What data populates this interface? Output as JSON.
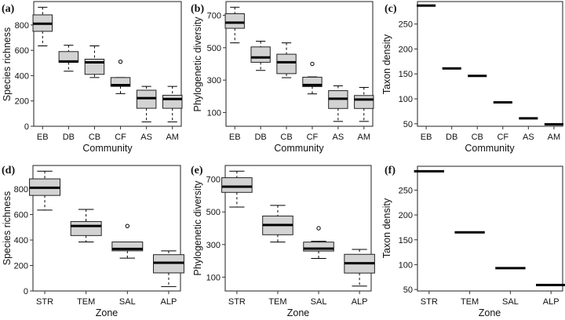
{
  "chart_data": [
    {
      "panel": "(a)",
      "type": "box",
      "xlabel": "Community",
      "ylabel": "Species richness",
      "ylim": [
        0,
        985
      ],
      "yticks": [
        0,
        200,
        400,
        600,
        800
      ],
      "categories": [
        "EB",
        "DB",
        "CB",
        "CF",
        "AS",
        "AM"
      ],
      "boxes": [
        {
          "min": 635,
          "q1": 750,
          "median": 810,
          "q3": 880,
          "max": 940,
          "outliers": []
        },
        {
          "min": 435,
          "q1": 505,
          "median": 512,
          "q3": 590,
          "max": 640,
          "outliers": []
        },
        {
          "min": 385,
          "q1": 410,
          "median": 505,
          "q3": 530,
          "max": 635,
          "outliers": []
        },
        {
          "min": 258,
          "q1": 315,
          "median": 325,
          "q3": 385,
          "max": 385,
          "outliers": [
            510
          ]
        },
        {
          "min": 35,
          "q1": 142,
          "median": 222,
          "q3": 285,
          "max": 315,
          "outliers": []
        },
        {
          "min": 35,
          "q1": 142,
          "median": 215,
          "q3": 245,
          "max": 315,
          "outliers": []
        }
      ]
    },
    {
      "panel": "(b)",
      "type": "box",
      "xlabel": "Community",
      "ylabel": "Phylogenetic diversity",
      "ylim": [
        15,
        785
      ],
      "yticks": [
        100,
        300,
        500,
        700
      ],
      "categories": [
        "EB",
        "DB",
        "CB",
        "CF",
        "AS",
        "AM"
      ],
      "boxes": [
        {
          "min": 530,
          "q1": 620,
          "median": 655,
          "q3": 710,
          "max": 750,
          "outliers": []
        },
        {
          "min": 360,
          "q1": 410,
          "median": 440,
          "q3": 505,
          "max": 540,
          "outliers": []
        },
        {
          "min": 315,
          "q1": 340,
          "median": 410,
          "q3": 460,
          "max": 530,
          "outliers": []
        },
        {
          "min": 215,
          "q1": 260,
          "median": 270,
          "q3": 318,
          "max": 320,
          "outliers": [
            400
          ]
        },
        {
          "min": 45,
          "q1": 125,
          "median": 185,
          "q3": 235,
          "max": 265,
          "outliers": []
        },
        {
          "min": 45,
          "q1": 125,
          "median": 180,
          "q3": 205,
          "max": 255,
          "outliers": []
        }
      ]
    },
    {
      "panel": "(c)",
      "type": "line-segments",
      "xlabel": "Community",
      "ylabel": "Taxon density",
      "ylim": [
        45,
        295
      ],
      "yticks": [
        50,
        100,
        150,
        200,
        250
      ],
      "categories": [
        "EB",
        "DB",
        "CB",
        "CF",
        "AS",
        "AM"
      ],
      "values": [
        287,
        161,
        146,
        93,
        61,
        49
      ]
    },
    {
      "panel": "(d)",
      "type": "box",
      "xlabel": "Zone",
      "ylabel": "Species richness",
      "ylim": [
        0,
        985
      ],
      "yticks": [
        0,
        200,
        400,
        600,
        800
      ],
      "categories": [
        "STR",
        "TEM",
        "SAL",
        "ALP"
      ],
      "boxes": [
        {
          "min": 635,
          "q1": 750,
          "median": 810,
          "q3": 880,
          "max": 940,
          "outliers": []
        },
        {
          "min": 385,
          "q1": 435,
          "median": 510,
          "q3": 545,
          "max": 640,
          "outliers": []
        },
        {
          "min": 258,
          "q1": 315,
          "median": 330,
          "q3": 385,
          "max": 385,
          "outliers": [
            510
          ]
        },
        {
          "min": 35,
          "q1": 142,
          "median": 222,
          "q3": 285,
          "max": 315,
          "outliers": []
        }
      ]
    },
    {
      "panel": "(e)",
      "type": "box",
      "xlabel": "Zone",
      "ylabel": "Phylogenetic diversity",
      "ylim": [
        15,
        785
      ],
      "yticks": [
        100,
        300,
        500,
        700
      ],
      "categories": [
        "STR",
        "TEM",
        "SAL",
        "ALP"
      ],
      "boxes": [
        {
          "min": 530,
          "q1": 620,
          "median": 655,
          "q3": 710,
          "max": 750,
          "outliers": []
        },
        {
          "min": 315,
          "q1": 360,
          "median": 420,
          "q3": 475,
          "max": 540,
          "outliers": []
        },
        {
          "min": 215,
          "q1": 260,
          "median": 275,
          "q3": 315,
          "max": 320,
          "outliers": [
            400
          ]
        },
        {
          "min": 45,
          "q1": 125,
          "median": 185,
          "q3": 240,
          "max": 270,
          "outliers": []
        }
      ]
    },
    {
      "panel": "(f)",
      "type": "line-segments",
      "xlabel": "Zone",
      "ylabel": "Taxon density",
      "ylim": [
        47,
        298
      ],
      "yticks": [
        50,
        100,
        150,
        200,
        250
      ],
      "categories": [
        "STR",
        "TEM",
        "SAL",
        "ALP"
      ],
      "values": [
        288,
        165,
        93,
        59
      ]
    }
  ],
  "colors": {
    "box_fill": "#d3d3d3",
    "line": "#000000",
    "frame": "#333333"
  }
}
